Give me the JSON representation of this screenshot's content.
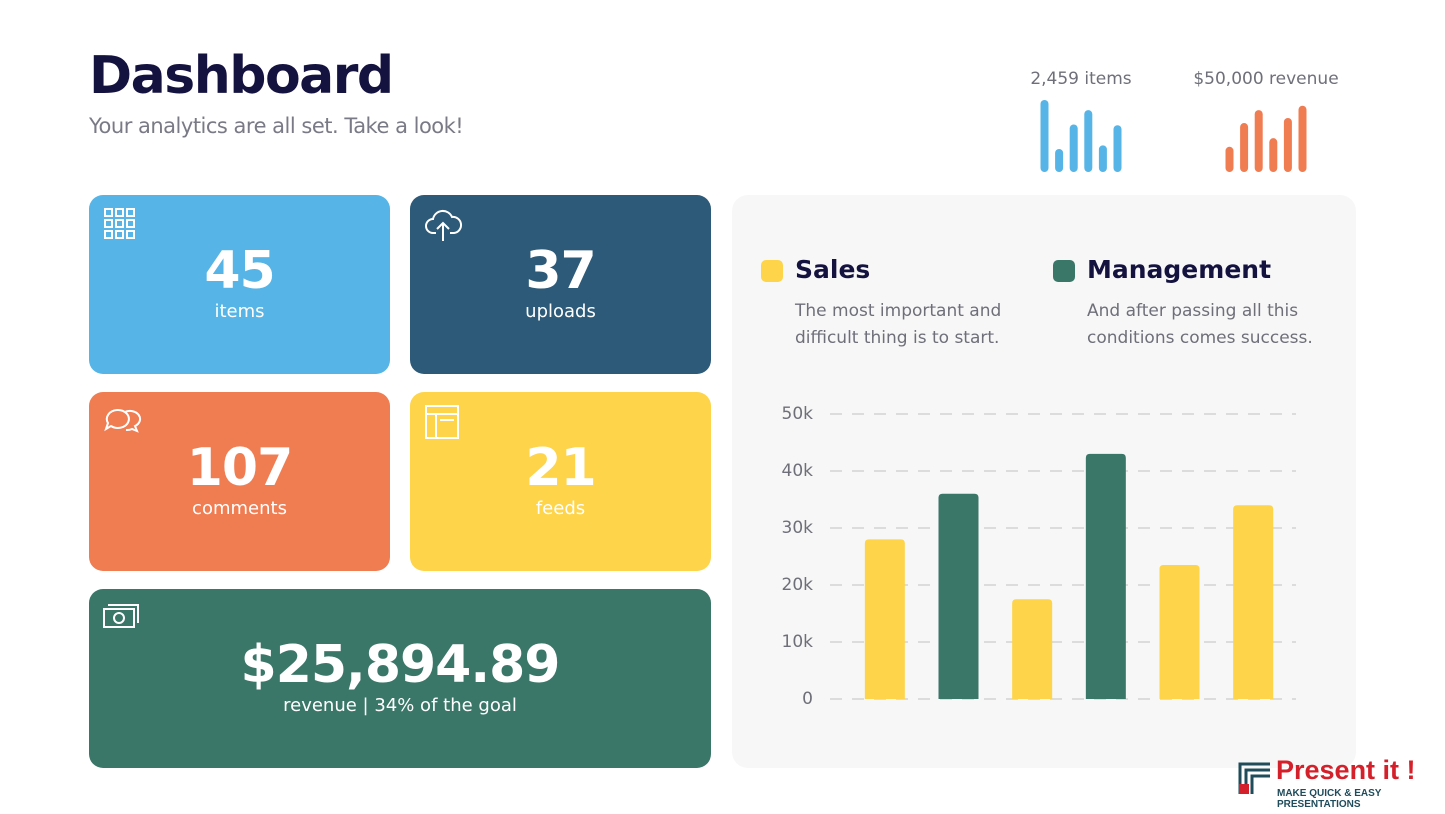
{
  "header": {
    "title": "Dashboard",
    "subtitle": "Your analytics are all set. Take a look!"
  },
  "mini_charts": [
    {
      "type": "bar",
      "title": "2,459 items",
      "color": "#56b4e6",
      "values": [
        100,
        32,
        66,
        86,
        37,
        65
      ]
    },
    {
      "type": "bar",
      "title": "$50,000 revenue",
      "color": "#f07c52",
      "values": [
        35,
        68,
        86,
        47,
        75,
        92
      ]
    }
  ],
  "cards": [
    {
      "value": "45",
      "label": "items",
      "color": "#56b4e6"
    },
    {
      "value": "37",
      "label": "uploads",
      "color": "#2d5a78"
    },
    {
      "value": "107",
      "label": "comments",
      "color": "#f07c52"
    },
    {
      "value": "21",
      "label": "feeds",
      "color": "#fdd44a"
    },
    {
      "value": "$25,894.89",
      "label": "revenue | 34% of the goal",
      "color": "#3b7768"
    }
  ],
  "legend_descriptions": [
    "The most important and difficult thing is to start.",
    "And after passing all this conditions comes success."
  ],
  "chart_data": {
    "type": "bar",
    "categories": [
      null,
      null,
      null,
      null,
      null,
      null
    ],
    "series": [
      {
        "name": "Sales",
        "color": "#fdd44a",
        "values": [
          28000,
          null,
          17500,
          null,
          23500,
          34000
        ]
      },
      {
        "name": "Management",
        "color": "#3b7768",
        "values": [
          null,
          36000,
          null,
          43000,
          null,
          null
        ]
      }
    ],
    "ylim": [
      0,
      50000
    ],
    "yticks": [
      0,
      {
        "value": 10000,
        "label": "10k"
      },
      {
        "value": 20000,
        "label": "20k"
      },
      {
        "value": 30000,
        "label": "30k"
      },
      {
        "value": 40000,
        "label": "40k"
      },
      {
        "value": 50000,
        "label": "50k"
      }
    ],
    "grid": true
  },
  "logo": {
    "name": "Present it !",
    "tagline": "MAKE QUICK & EASY PRESENTATIONS"
  }
}
